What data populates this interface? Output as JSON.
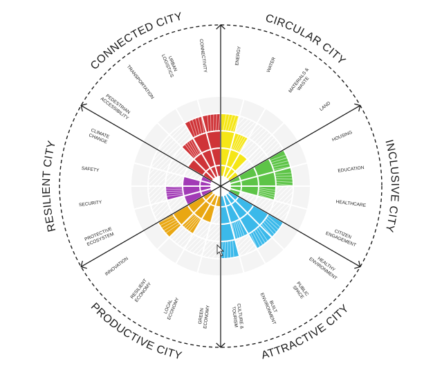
{
  "dimensions": [
    {
      "label": "CONNECTED CITY",
      "color": "#cf3438"
    },
    {
      "label": "CIRCULAR CITY",
      "color": "#f5e617"
    },
    {
      "label": "INCLUSIVE CITY",
      "color": "#5dc447"
    },
    {
      "label": "ATTRACTIVE CITY",
      "color": "#3bb9ea"
    },
    {
      "label": "PRODUCTIVE CITY",
      "color": "#e9a712"
    },
    {
      "label": "RESILIENT CITY",
      "color": "#a23bb6"
    }
  ],
  "themes": [
    {
      "lines": [
        "ENERGY"
      ],
      "dim": 1,
      "level": 4
    },
    {
      "lines": [
        "WATER"
      ],
      "dim": 1,
      "level": 3
    },
    {
      "lines": [
        "MATERIALS &",
        "WASTE"
      ],
      "dim": 1,
      "level": 2
    },
    {
      "lines": [
        "LAND"
      ],
      "dim": 1,
      "level": 1
    },
    {
      "lines": [
        "HOUSING"
      ],
      "dim": 2,
      "level": 4
    },
    {
      "lines": [
        "EDUCATION"
      ],
      "dim": 2,
      "level": 4
    },
    {
      "lines": [
        "HEALTHCARE"
      ],
      "dim": 2,
      "level": 3
    },
    {
      "lines": [
        "CITIZEN",
        "ENGAGEMENT"
      ],
      "dim": 2,
      "level": 1
    },
    {
      "lines": [
        "HEALTHY",
        "ENVIRONMENT"
      ],
      "dim": 3,
      "level": 4
    },
    {
      "lines": [
        "PUBLIC",
        "SPACE"
      ],
      "dim": 3,
      "level": 4
    },
    {
      "lines": [
        "BUILT",
        "ENVIRONMENT"
      ],
      "dim": 3,
      "level": 3
    },
    {
      "lines": [
        "CULTURE &",
        "TOURISM"
      ],
      "dim": 3,
      "level": 4
    },
    {
      "lines": [
        "GREEN",
        "ECONOMY"
      ],
      "dim": 4,
      "level": 1
    },
    {
      "lines": [
        "LOCAL",
        "ECONOMY"
      ],
      "dim": 4,
      "level": 2
    },
    {
      "lines": [
        "RESILIENT",
        "ECONOMY"
      ],
      "dim": 4,
      "level": 3
    },
    {
      "lines": [
        "INNOVATION"
      ],
      "dim": 4,
      "level": 4
    },
    {
      "lines": [
        "PROTECTIVE",
        "ECOSYSTEM"
      ],
      "dim": 5,
      "level": 2
    },
    {
      "lines": [
        "SECURITY"
      ],
      "dim": 5,
      "level": 3
    },
    {
      "lines": [
        "SAFETY"
      ],
      "dim": 5,
      "level": 2
    },
    {
      "lines": [
        "CLIMATE",
        "CHANGE"
      ],
      "dim": 5,
      "level": 1
    },
    {
      "lines": [
        "PEDESTRIAN",
        "ACCESSIBILITY"
      ],
      "dim": 0,
      "level": 2
    },
    {
      "lines": [
        "TRANSPORTATION"
      ],
      "dim": 0,
      "level": 3
    },
    {
      "lines": [
        "URBAN",
        "LOGISTICS"
      ],
      "dim": 0,
      "level": 4
    },
    {
      "lines": [
        "CONNECTIVITY"
      ],
      "dim": 0,
      "level": 4
    }
  ],
  "max_level": 4
}
